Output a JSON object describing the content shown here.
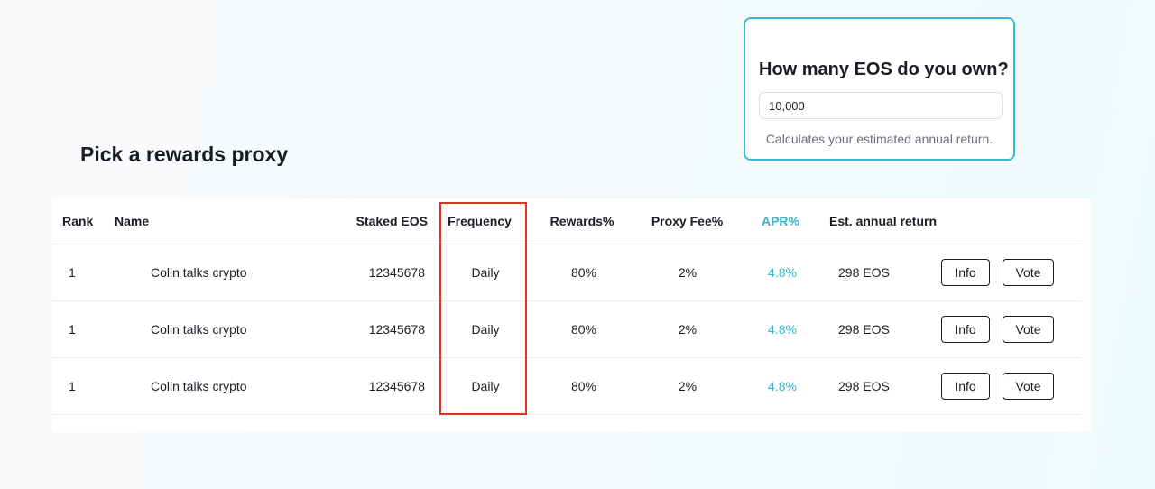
{
  "calculator": {
    "title": "How many EOS do you own?",
    "input_value": "10,000",
    "hint": "Calculates your estimated annual return."
  },
  "section": {
    "title": "Pick a rewards proxy"
  },
  "table": {
    "headers": {
      "rank": "Rank",
      "name": "Name",
      "staked": "Staked EOS",
      "frequency": "Frequency",
      "rewards": "Rewards%",
      "fee": "Proxy Fee%",
      "apr": "APR%",
      "annual": "Est. annual return"
    },
    "rows": [
      {
        "rank": "1",
        "name": "Colin talks crypto",
        "staked": "12345678",
        "frequency": "Daily",
        "rewards": "80%",
        "fee": "2%",
        "apr": "4.8%",
        "annual": "298 EOS",
        "info_label": "Info",
        "vote_label": "Vote"
      },
      {
        "rank": "1",
        "name": "Colin talks crypto",
        "staked": "12345678",
        "frequency": "Daily",
        "rewards": "80%",
        "fee": "2%",
        "apr": "4.8%",
        "annual": "298 EOS",
        "info_label": "Info",
        "vote_label": "Vote"
      },
      {
        "rank": "1",
        "name": "Colin talks crypto",
        "staked": "12345678",
        "frequency": "Daily",
        "rewards": "80%",
        "fee": "2%",
        "apr": "4.8%",
        "annual": "298 EOS",
        "info_label": "Info",
        "vote_label": "Vote"
      }
    ]
  },
  "colors": {
    "accent": "#35b9d0",
    "apr": "#35b3cc",
    "highlight": "#e3321f",
    "text": "#1a1d24"
  }
}
